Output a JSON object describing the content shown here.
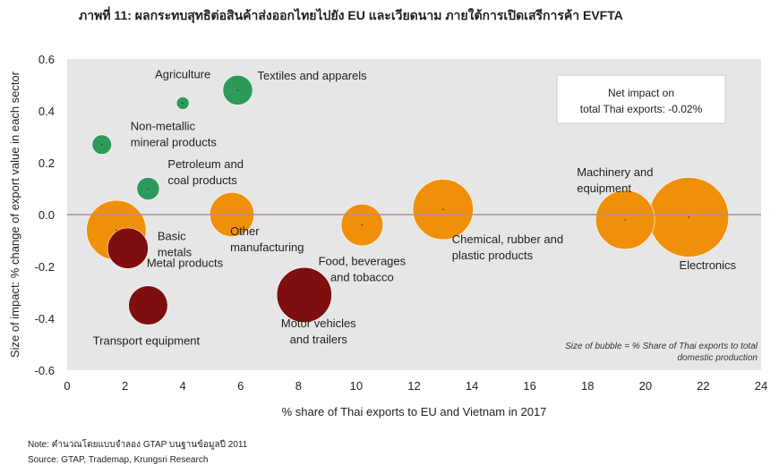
{
  "title": "ภาพที่ 11: ผลกระทบสุทธิต่อสินค้าส่งออกไทยไปยัง EU และเวียดนาม ภายใต้การเปิดเสรีการค้า EVFTA",
  "note": "Note: คำนวณโดยแบบจำลอง GTAP บนฐานข้อมูลปี 2011",
  "source": "Source: GTAP, Trademap, Krungsri Research",
  "net_impact_box": [
    "Net impact on",
    "total Thai exports: -0.02%"
  ],
  "bubble_size_note": [
    "Size of bubble = % Share of Thai exports to total",
    "domestic production"
  ],
  "colors": {
    "green": "#2e9a5a",
    "orange": "#f0900a",
    "red": "#7f0f0f",
    "zero_line": "#b09090",
    "plot_bg": "#e6e6e6"
  },
  "chart_data": {
    "type": "bubble",
    "xlabel": "% share of Thai exports to EU and Vietnam in 2017",
    "ylabel": "Size of impact: % change of export value in each sector",
    "xlim": [
      0,
      24
    ],
    "ylim": [
      -0.6,
      0.6
    ],
    "xticks": [
      "0",
      "2",
      "4",
      "6",
      "8",
      "10",
      "12",
      "14",
      "16",
      "18",
      "20",
      "22",
      "24"
    ],
    "yticks": [
      "-0.6",
      "-0.4",
      "-0.2",
      "0.0",
      "0.2",
      "0.4",
      "0.6"
    ],
    "grid": false,
    "points": [
      {
        "label": [
          "Agriculture"
        ],
        "x": 4.0,
        "y": 0.43,
        "size": 0.05,
        "color": "green"
      },
      {
        "label": [
          "Textiles and apparels"
        ],
        "x": 5.9,
        "y": 0.48,
        "size": 0.28,
        "color": "green"
      },
      {
        "label": [
          "Non-metallic",
          "mineral products"
        ],
        "x": 1.2,
        "y": 0.27,
        "size": 0.12,
        "color": "green"
      },
      {
        "label": [
          "Petroleum and",
          "coal products"
        ],
        "x": 2.8,
        "y": 0.1,
        "size": 0.16,
        "color": "green"
      },
      {
        "label": [
          "Basic",
          "metals"
        ],
        "x": 1.7,
        "y": -0.06,
        "size": 1.12,
        "color": "orange"
      },
      {
        "label": [
          "Other",
          "manufacturing"
        ],
        "x": 5.7,
        "y": 0.0,
        "size": 0.62,
        "color": "orange"
      },
      {
        "label": [
          "Food, beverages",
          "and tobacco"
        ],
        "x": 10.2,
        "y": -0.04,
        "size": 0.55,
        "color": "orange"
      },
      {
        "label": [
          "Chemical, rubber and",
          "plastic products"
        ],
        "x": 13.0,
        "y": 0.02,
        "size": 1.15,
        "color": "orange"
      },
      {
        "label": [
          "Machinery and",
          "equipment"
        ],
        "x": 19.3,
        "y": -0.02,
        "size": 1.1,
        "color": "orange"
      },
      {
        "label": [
          "Electronics"
        ],
        "x": 21.5,
        "y": -0.01,
        "size": 2.0,
        "color": "orange"
      },
      {
        "label": [
          "Metal products"
        ],
        "x": 2.1,
        "y": -0.13,
        "size": 0.52,
        "color": "red"
      },
      {
        "label": [
          "Transport equipment"
        ],
        "x": 2.8,
        "y": -0.35,
        "size": 0.48,
        "color": "red"
      },
      {
        "label": [
          "Motor vehicles",
          "and trailers"
        ],
        "x": 8.2,
        "y": -0.31,
        "size": 0.95,
        "color": "red"
      }
    ]
  }
}
